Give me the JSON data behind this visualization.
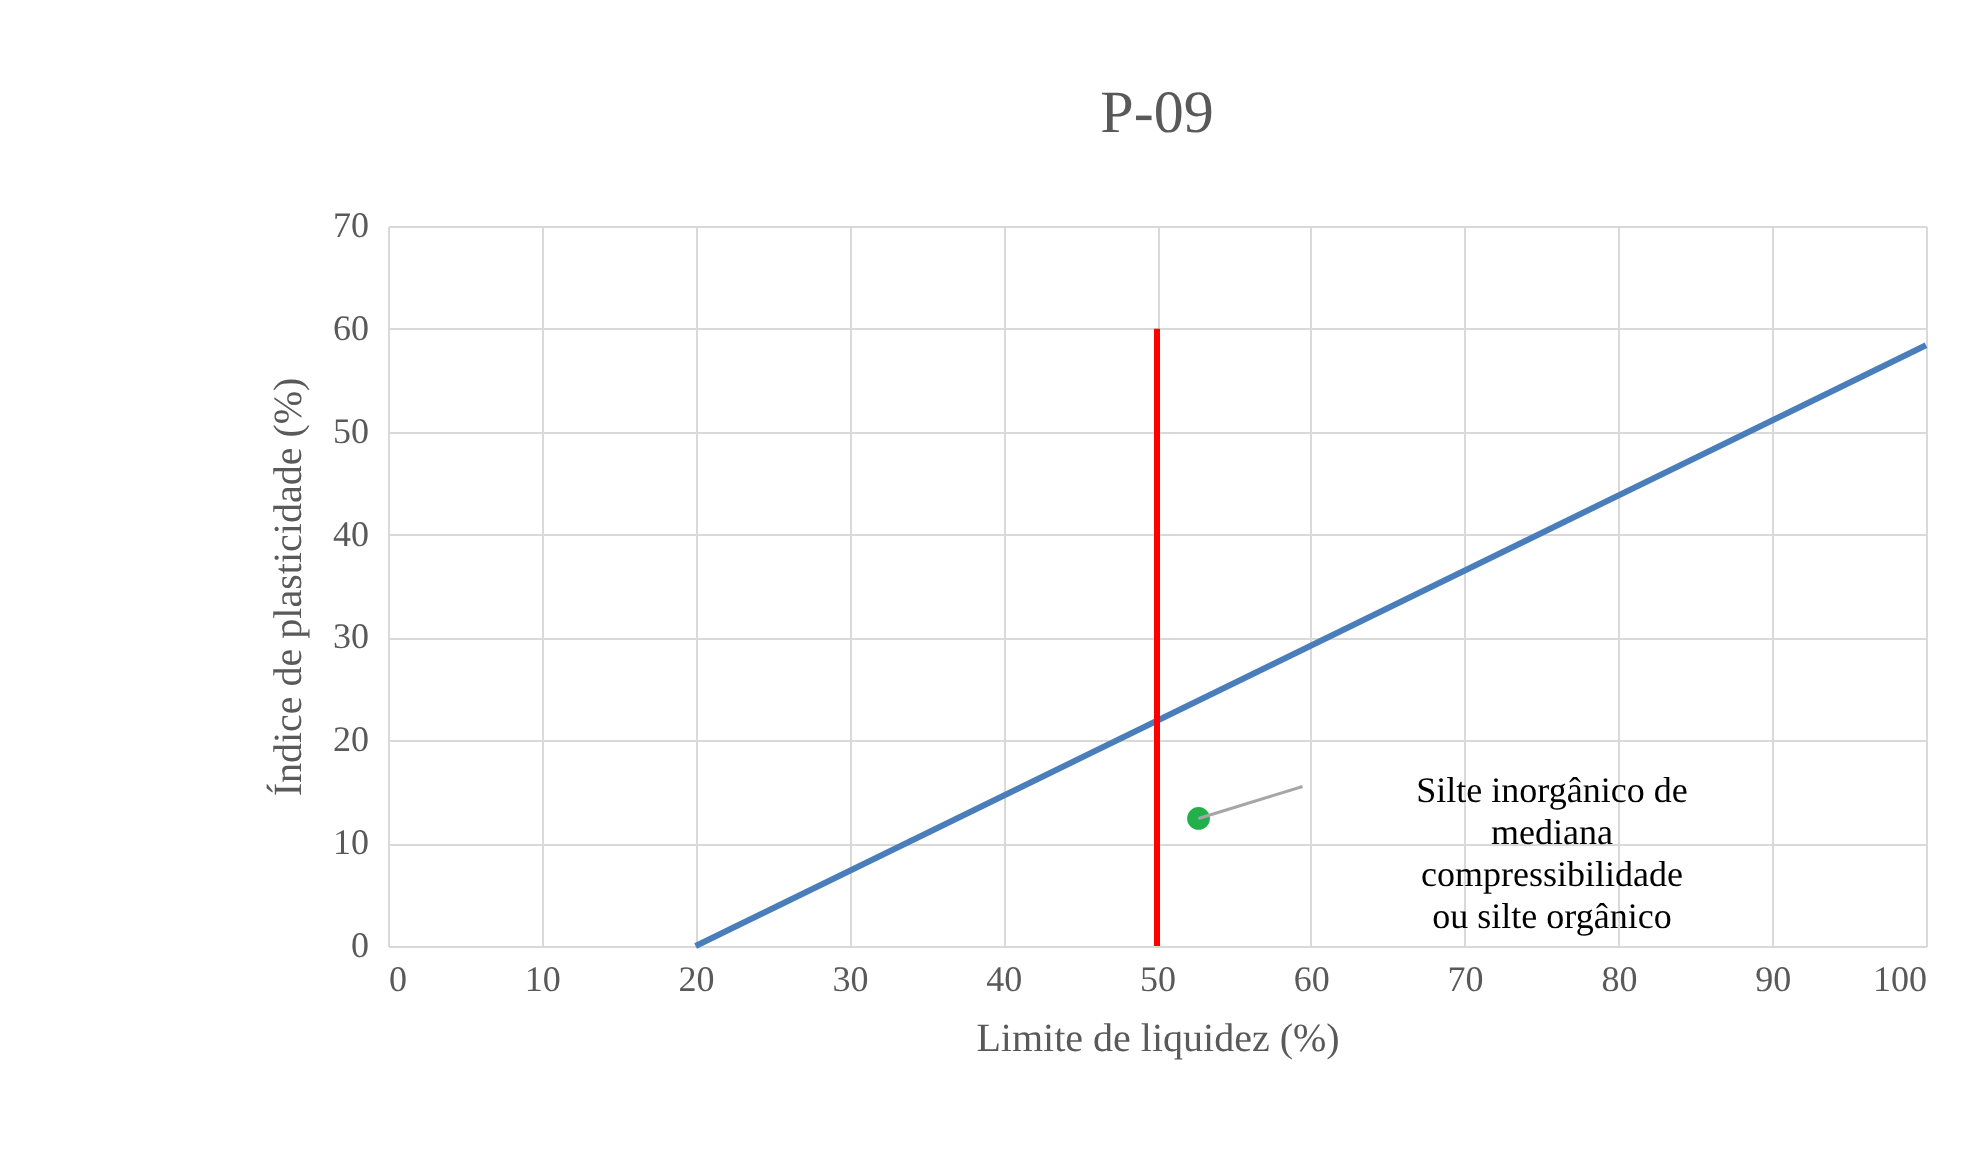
{
  "chart_data": {
    "type": "line",
    "title": "P-09",
    "xlabel": "Limite de liquidez (%)",
    "ylabel": "Índice de plasticidade (%)",
    "xlim": [
      0,
      100
    ],
    "xticks": [
      0,
      10,
      20,
      30,
      40,
      50,
      60,
      70,
      80,
      90,
      100
    ],
    "ylim": [
      0,
      70
    ],
    "yticks": [
      0,
      10,
      20,
      30,
      40,
      50,
      60,
      70
    ],
    "grid": true,
    "series": [
      {
        "color": "#4a7ebb",
        "x": [
          20,
          100
        ],
        "values": [
          0,
          58.4
        ]
      },
      {
        "color": "#ff0000",
        "x": [
          50,
          50
        ],
        "values": [
          0,
          60
        ]
      },
      {
        "type": "scatter",
        "color": "#22b04b",
        "x": [
          52.7
        ],
        "values": [
          12.4
        ]
      }
    ],
    "annotations": [
      "Silte inorgânico de\nmediana\ncompressibilidade\nou silte orgânico"
    ]
  }
}
